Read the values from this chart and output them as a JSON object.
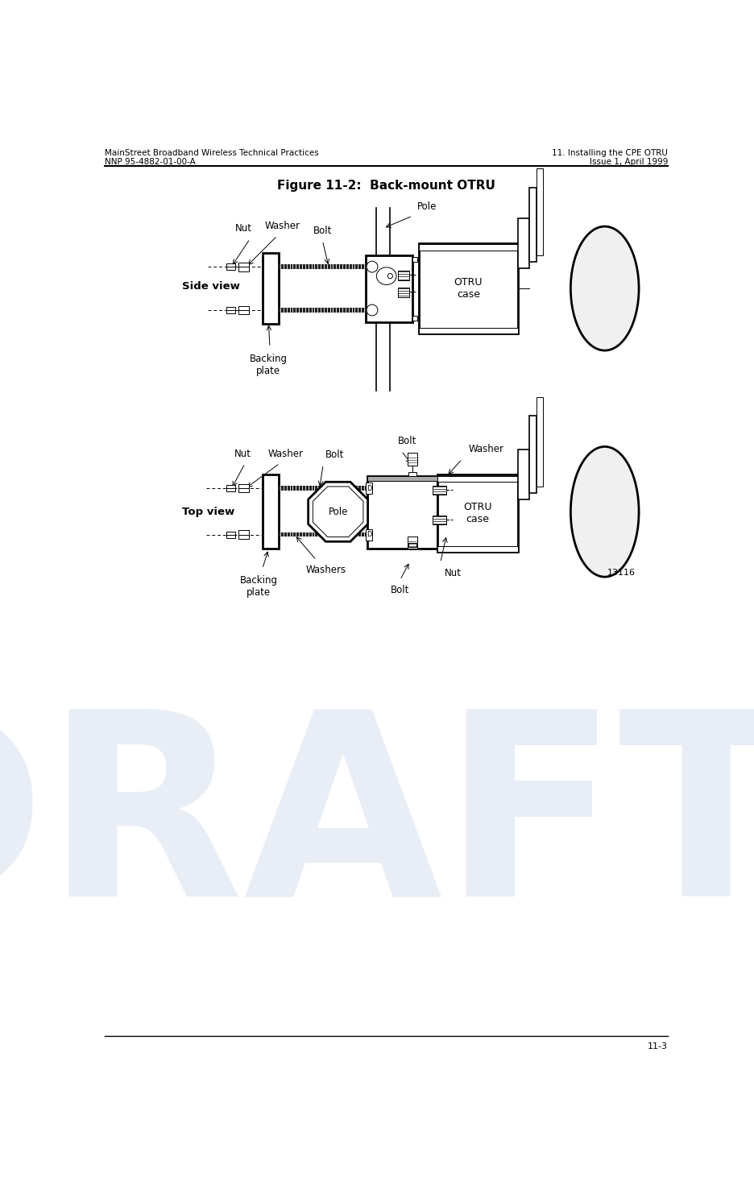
{
  "header_left_line1": "MainStreet Broadband Wireless Technical Practices",
  "header_left_line2": "NNP 95-4882-01-00-A",
  "header_right_line1": "11. Installing the CPE OTRU",
  "header_right_line2": "Issue 1, April 1999",
  "figure_title": "Figure 11-2:  Back-mount OTRU",
  "side_view_label": "Side view",
  "top_view_label": "Top view",
  "footer_right": "11-3",
  "figure_number": "13116",
  "draft_text": "DRAFT",
  "bg_color": "#ffffff",
  "line_color": "#000000",
  "draft_color": "#c8d4e8"
}
